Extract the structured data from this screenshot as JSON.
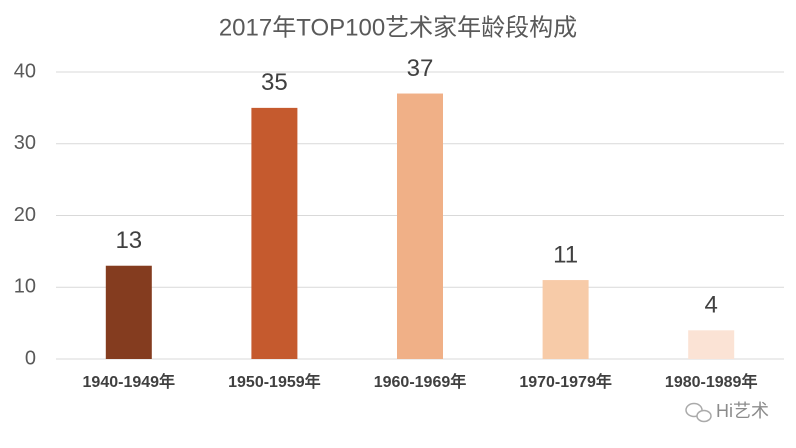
{
  "chart_data": {
    "type": "bar",
    "title": "2017年TOP100艺术家年龄段构成",
    "categories": [
      "1940-1949年",
      "1950-1959年",
      "1960-1969年",
      "1970-1979年",
      "1980-1989年"
    ],
    "values": [
      13,
      35,
      37,
      11,
      4
    ],
    "colors": [
      "#843c1f",
      "#c55a2e",
      "#f0b087",
      "#f7cba8",
      "#fbe3d5"
    ],
    "ylim": [
      0,
      40
    ],
    "yticks": [
      0,
      10,
      20,
      30,
      40
    ],
    "grid": true,
    "data_labels": true
  },
  "watermark": "Hi艺术"
}
